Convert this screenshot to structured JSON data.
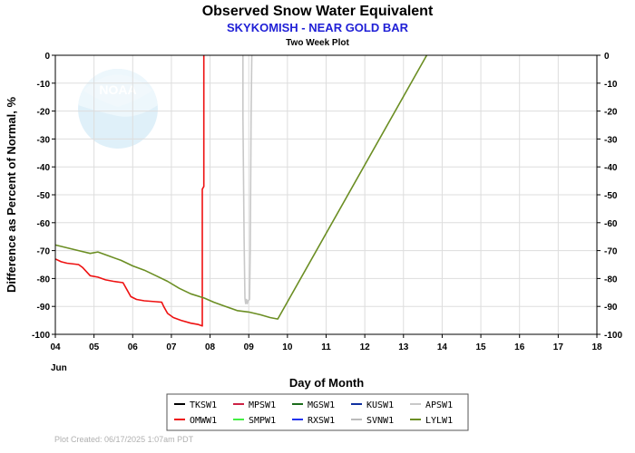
{
  "chart_data": {
    "type": "line",
    "title": "Observed Snow Water Equivalent",
    "subtitle": "SKYKOMISH - NEAR GOLD BAR",
    "subsubtitle": "Two Week Plot",
    "xlabel": "Day of Month",
    "ylabel": "Difference as Percent of Normal, %",
    "month_label": "Jun",
    "footer": "Plot Created: 06/17/2025 1:07am PDT",
    "logo_text": "NOAA",
    "xlim": [
      4,
      18
    ],
    "ylim": [
      -100,
      0
    ],
    "x_ticks": [
      "04",
      "05",
      "06",
      "07",
      "08",
      "09",
      "10",
      "11",
      "12",
      "13",
      "14",
      "15",
      "16",
      "17",
      "18"
    ],
    "x_tick_values": [
      4,
      5,
      6,
      7,
      8,
      9,
      10,
      11,
      12,
      13,
      14,
      15,
      16,
      17,
      18
    ],
    "y_ticks": [
      "0",
      "-10",
      "-20",
      "-30",
      "-40",
      "-50",
      "-60",
      "-70",
      "-80",
      "-90",
      "-100"
    ],
    "y_tick_values": [
      0,
      -10,
      -20,
      -30,
      -40,
      -50,
      -60,
      -70,
      -80,
      -90,
      -100
    ],
    "grid": true,
    "legend_placement": "bottom-center",
    "legend": [
      {
        "name": "TKSW1",
        "color": "#000000"
      },
      {
        "name": "MPSW1",
        "color": "#cc2244"
      },
      {
        "name": "MGSW1",
        "color": "#1a6b1a"
      },
      {
        "name": "KUSW1",
        "color": "#1030a0"
      },
      {
        "name": "APSW1",
        "color": "#c8c8c8"
      },
      {
        "name": "OMWW1",
        "color": "#ee1111"
      },
      {
        "name": "SMPW1",
        "color": "#44ee44"
      },
      {
        "name": "RXSW1",
        "color": "#2233ee"
      },
      {
        "name": "SVNW1",
        "color": "#bbbbbb"
      },
      {
        "name": "LYLW1",
        "color": "#6b8e23"
      }
    ],
    "series": [
      {
        "name": "OMWW1",
        "color": "#ee1111",
        "points": [
          [
            4.0,
            -73.0
          ],
          [
            4.15,
            -74.0
          ],
          [
            4.3,
            -74.5
          ],
          [
            4.6,
            -75.0
          ],
          [
            4.7,
            -76.0
          ],
          [
            4.9,
            -79.0
          ],
          [
            5.1,
            -79.5
          ],
          [
            5.3,
            -80.5
          ],
          [
            5.5,
            -81.0
          ],
          [
            5.75,
            -81.5
          ],
          [
            5.85,
            -84.0
          ],
          [
            5.95,
            -86.5
          ],
          [
            6.1,
            -87.5
          ],
          [
            6.3,
            -88.0
          ],
          [
            6.6,
            -88.3
          ],
          [
            6.75,
            -88.5
          ],
          [
            6.8,
            -90.0
          ],
          [
            6.9,
            -92.5
          ],
          [
            7.05,
            -94.0
          ],
          [
            7.25,
            -95.0
          ],
          [
            7.5,
            -96.0
          ],
          [
            7.7,
            -96.5
          ],
          [
            7.8,
            -97.0
          ],
          [
            7.8,
            -48.0
          ],
          [
            7.84,
            -47.0
          ],
          [
            7.84,
            0.0
          ]
        ]
      },
      {
        "name": "APSW1",
        "color": "#c8c8c8",
        "points": [
          [
            8.85,
            0.0
          ],
          [
            8.85,
            -22.0
          ],
          [
            8.88,
            -66.0
          ],
          [
            8.9,
            -87.0
          ],
          [
            8.92,
            -89.0
          ],
          [
            8.94,
            -87.5
          ],
          [
            8.96,
            -89.0
          ],
          [
            8.98,
            -88.0
          ],
          [
            9.02,
            -87.5
          ],
          [
            9.04,
            -68.0
          ],
          [
            9.06,
            -22.0
          ],
          [
            9.08,
            0.0
          ]
        ]
      },
      {
        "name": "LYLW1",
        "color": "#6b8e23",
        "points": [
          [
            4.0,
            -68.0
          ],
          [
            4.3,
            -69.0
          ],
          [
            4.6,
            -70.0
          ],
          [
            4.9,
            -71.0
          ],
          [
            5.1,
            -70.5
          ],
          [
            5.4,
            -72.0
          ],
          [
            5.7,
            -73.5
          ],
          [
            6.0,
            -75.5
          ],
          [
            6.3,
            -77.0
          ],
          [
            6.6,
            -79.0
          ],
          [
            6.9,
            -81.0
          ],
          [
            7.2,
            -83.5
          ],
          [
            7.5,
            -85.5
          ],
          [
            7.85,
            -87.0
          ],
          [
            8.1,
            -88.5
          ],
          [
            8.4,
            -90.0
          ],
          [
            8.7,
            -91.5
          ],
          [
            9.0,
            -92.0
          ],
          [
            9.3,
            -93.0
          ],
          [
            9.55,
            -94.0
          ],
          [
            9.75,
            -94.5
          ],
          [
            13.6,
            0.0
          ]
        ]
      }
    ]
  }
}
